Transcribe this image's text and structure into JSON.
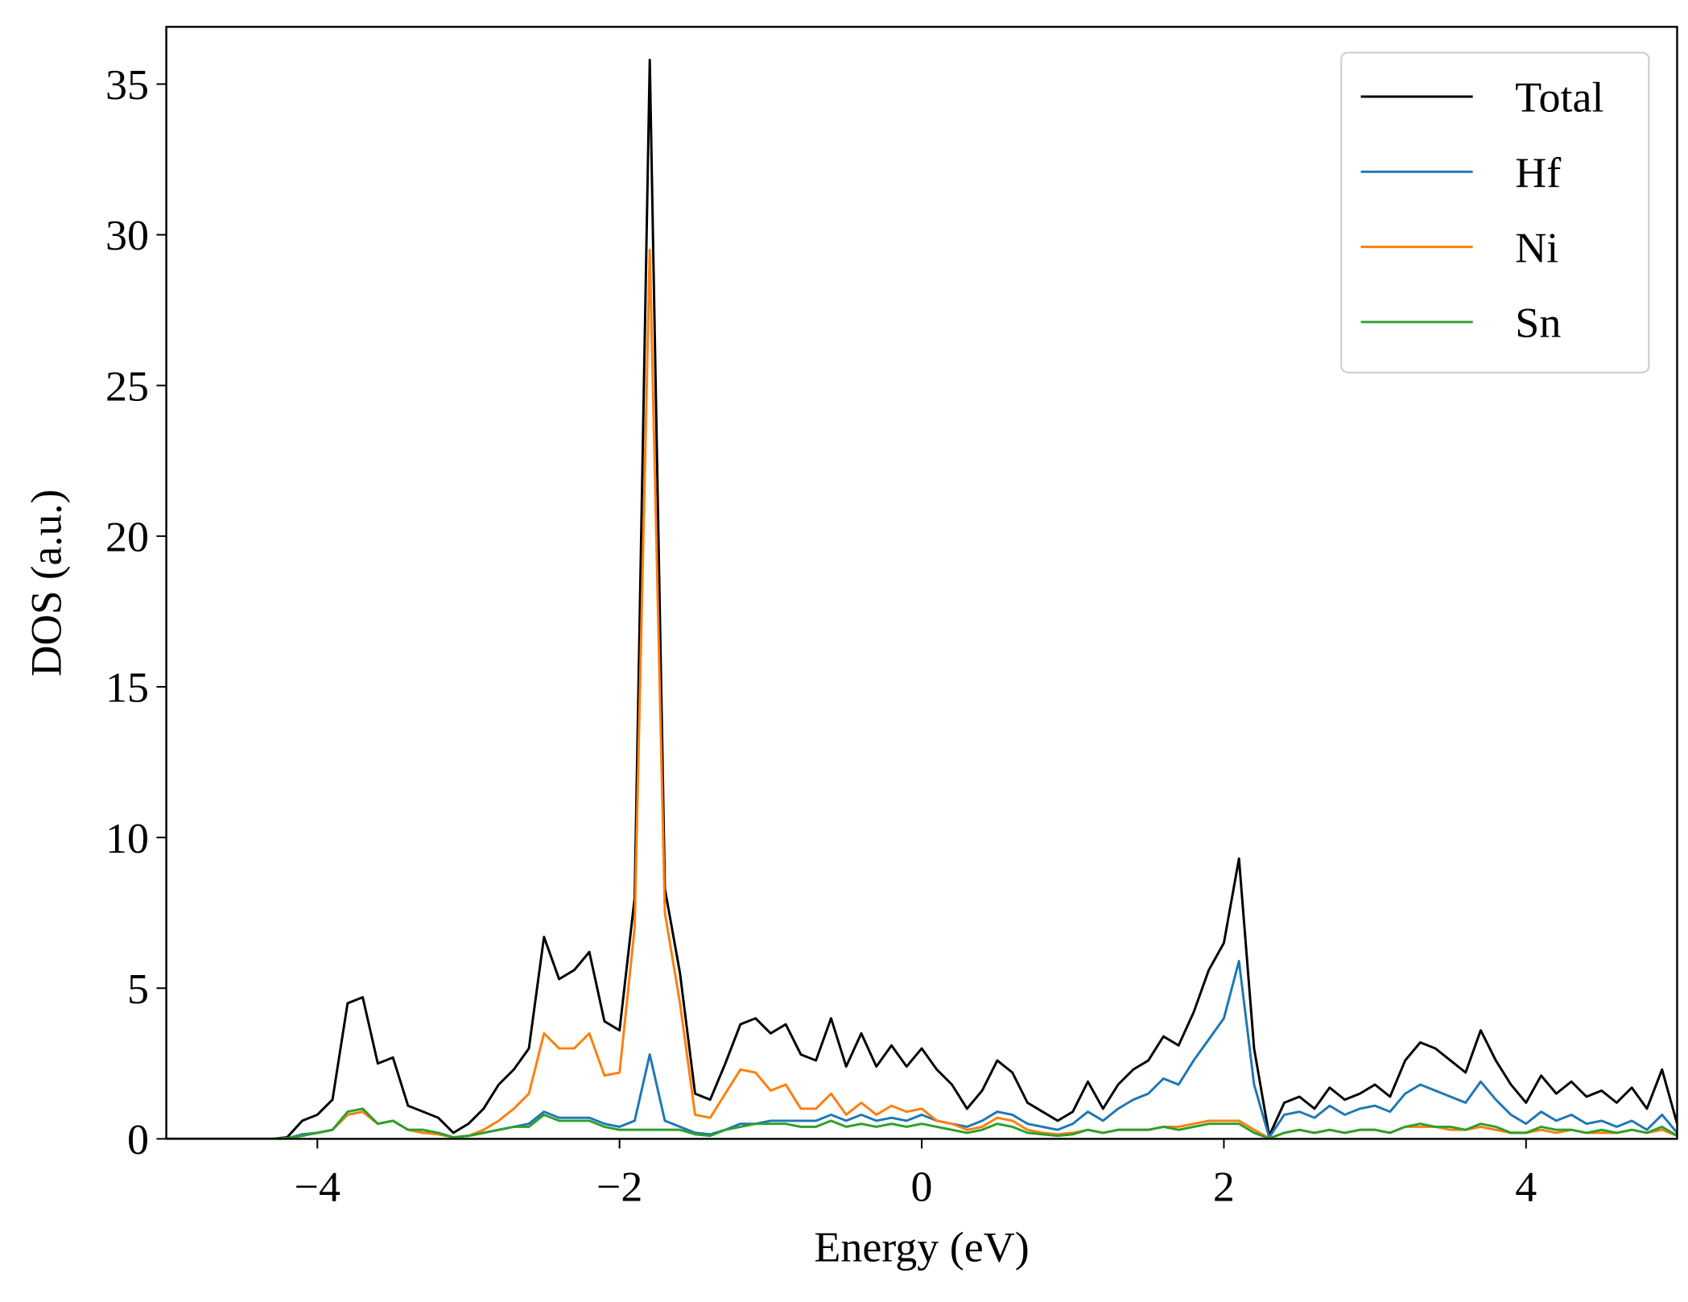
{
  "chart_data": {
    "type": "line",
    "x_label": "Energy (eV)",
    "y_label": "DOS (a.u.)",
    "x": [
      -5.0,
      -4.9,
      -4.8,
      -4.7,
      -4.6,
      -4.5,
      -4.4,
      -4.3,
      -4.2,
      -4.1,
      -4.0,
      -3.9,
      -3.8,
      -3.7,
      -3.6,
      -3.5,
      -3.4,
      -3.3,
      -3.2,
      -3.1,
      -3.0,
      -2.9,
      -2.8,
      -2.7,
      -2.6,
      -2.5,
      -2.4,
      -2.3,
      -2.2,
      -2.1,
      -2.0,
      -1.9,
      -1.8,
      -1.7,
      -1.6,
      -1.5,
      -1.4,
      -1.3,
      -1.2,
      -1.1,
      -1.0,
      -0.9,
      -0.8,
      -0.7,
      -0.6,
      -0.5,
      -0.4,
      -0.3,
      -0.2,
      -0.1,
      0.0,
      0.1,
      0.2,
      0.3,
      0.4,
      0.5,
      0.6,
      0.7,
      0.8,
      0.9,
      1.0,
      1.1,
      1.2,
      1.3,
      1.4,
      1.5,
      1.6,
      1.7,
      1.8,
      1.9,
      2.0,
      2.1,
      2.2,
      2.3,
      2.4,
      2.5,
      2.6,
      2.7,
      2.8,
      2.9,
      3.0,
      3.1,
      3.2,
      3.3,
      3.4,
      3.5,
      3.6,
      3.7,
      3.8,
      3.9,
      4.0,
      4.1,
      4.2,
      4.3,
      4.4,
      4.5,
      4.6,
      4.7,
      4.8,
      4.9,
      5.0
    ],
    "series": [
      {
        "name": "Total",
        "color": "#000000",
        "values": [
          0,
          0,
          0,
          0,
          0,
          0,
          0,
          0,
          0.05,
          0.6,
          0.8,
          1.3,
          4.5,
          4.7,
          2.5,
          2.7,
          1.1,
          0.9,
          0.7,
          0.2,
          0.5,
          1.0,
          1.8,
          2.3,
          3.0,
          6.7,
          5.3,
          5.6,
          6.2,
          3.9,
          3.6,
          8.0,
          35.8,
          8.3,
          5.5,
          1.5,
          1.3,
          2.5,
          3.8,
          4.0,
          3.5,
          3.8,
          2.8,
          2.6,
          4.0,
          2.4,
          3.5,
          2.4,
          3.1,
          2.4,
          3.0,
          2.3,
          1.8,
          1.0,
          1.6,
          2.6,
          2.2,
          1.2,
          0.9,
          0.6,
          0.9,
          1.9,
          1.0,
          1.8,
          2.3,
          2.6,
          3.4,
          3.1,
          4.2,
          5.6,
          6.5,
          9.3,
          3.0,
          0.1,
          1.2,
          1.4,
          1.0,
          1.7,
          1.3,
          1.5,
          1.8,
          1.4,
          2.6,
          3.2,
          3.0,
          2.6,
          2.2,
          3.6,
          2.6,
          1.8,
          1.2,
          2.1,
          1.5,
          1.9,
          1.4,
          1.6,
          1.2,
          1.7,
          1.0,
          2.3,
          0.5
        ]
      },
      {
        "name": "Hf",
        "color": "#1f77b4",
        "values": [
          0,
          0,
          0,
          0,
          0,
          0,
          0,
          0,
          0.02,
          0.15,
          0.2,
          0.3,
          0.8,
          0.9,
          0.5,
          0.6,
          0.3,
          0.2,
          0.2,
          0.05,
          0.1,
          0.2,
          0.3,
          0.4,
          0.5,
          0.9,
          0.7,
          0.7,
          0.7,
          0.5,
          0.4,
          0.6,
          2.8,
          0.6,
          0.4,
          0.2,
          0.15,
          0.3,
          0.5,
          0.5,
          0.6,
          0.6,
          0.6,
          0.6,
          0.8,
          0.6,
          0.8,
          0.6,
          0.7,
          0.6,
          0.8,
          0.6,
          0.5,
          0.4,
          0.6,
          0.9,
          0.8,
          0.5,
          0.4,
          0.3,
          0.5,
          0.9,
          0.6,
          1.0,
          1.3,
          1.5,
          2.0,
          1.8,
          2.6,
          3.3,
          4.0,
          5.9,
          1.8,
          0.05,
          0.8,
          0.9,
          0.7,
          1.1,
          0.8,
          1.0,
          1.1,
          0.9,
          1.5,
          1.8,
          1.6,
          1.4,
          1.2,
          1.9,
          1.3,
          0.8,
          0.5,
          0.9,
          0.6,
          0.8,
          0.5,
          0.6,
          0.4,
          0.6,
          0.3,
          0.8,
          0.2
        ]
      },
      {
        "name": "Ni",
        "color": "#ff7f0e",
        "values": [
          0,
          0,
          0,
          0,
          0,
          0,
          0,
          0,
          0.02,
          0.1,
          0.2,
          0.3,
          0.8,
          0.9,
          0.5,
          0.6,
          0.3,
          0.2,
          0.15,
          0.05,
          0.1,
          0.3,
          0.6,
          1.0,
          1.5,
          3.5,
          3.0,
          3.0,
          3.5,
          2.1,
          2.2,
          7.0,
          29.5,
          7.5,
          4.5,
          0.8,
          0.7,
          1.5,
          2.3,
          2.2,
          1.6,
          1.8,
          1.0,
          1.0,
          1.5,
          0.8,
          1.2,
          0.8,
          1.1,
          0.9,
          1.0,
          0.6,
          0.5,
          0.3,
          0.4,
          0.7,
          0.6,
          0.3,
          0.2,
          0.15,
          0.2,
          0.3,
          0.2,
          0.3,
          0.3,
          0.3,
          0.4,
          0.4,
          0.5,
          0.6,
          0.6,
          0.6,
          0.3,
          0.02,
          0.2,
          0.3,
          0.2,
          0.3,
          0.2,
          0.3,
          0.3,
          0.2,
          0.4,
          0.4,
          0.4,
          0.3,
          0.3,
          0.4,
          0.3,
          0.2,
          0.2,
          0.3,
          0.2,
          0.3,
          0.2,
          0.2,
          0.2,
          0.3,
          0.2,
          0.3,
          0.1
        ]
      },
      {
        "name": "Sn",
        "color": "#2ca02c",
        "values": [
          0,
          0,
          0,
          0,
          0,
          0,
          0,
          0,
          0.02,
          0.1,
          0.2,
          0.3,
          0.9,
          1.0,
          0.5,
          0.6,
          0.3,
          0.3,
          0.2,
          0.05,
          0.1,
          0.2,
          0.3,
          0.4,
          0.4,
          0.8,
          0.6,
          0.6,
          0.6,
          0.4,
          0.3,
          0.3,
          0.3,
          0.3,
          0.3,
          0.15,
          0.1,
          0.3,
          0.4,
          0.5,
          0.5,
          0.5,
          0.4,
          0.4,
          0.6,
          0.4,
          0.5,
          0.4,
          0.5,
          0.4,
          0.5,
          0.4,
          0.3,
          0.2,
          0.3,
          0.5,
          0.4,
          0.2,
          0.15,
          0.1,
          0.15,
          0.3,
          0.2,
          0.3,
          0.3,
          0.3,
          0.4,
          0.3,
          0.4,
          0.5,
          0.5,
          0.5,
          0.2,
          0.01,
          0.2,
          0.3,
          0.2,
          0.3,
          0.2,
          0.3,
          0.3,
          0.2,
          0.4,
          0.5,
          0.4,
          0.4,
          0.3,
          0.5,
          0.4,
          0.2,
          0.2,
          0.4,
          0.3,
          0.3,
          0.2,
          0.3,
          0.2,
          0.3,
          0.2,
          0.4,
          0.1
        ]
      }
    ],
    "xlim": [
      -5,
      5
    ],
    "ylim": [
      0,
      36.9
    ],
    "xticks": [
      {
        "value": -4,
        "label": "−4"
      },
      {
        "value": -2,
        "label": "−2"
      },
      0,
      2,
      4
    ],
    "yticks": [
      0,
      5,
      10,
      15,
      20,
      25,
      30,
      35
    ],
    "grid": false,
    "legend": "upper right"
  }
}
